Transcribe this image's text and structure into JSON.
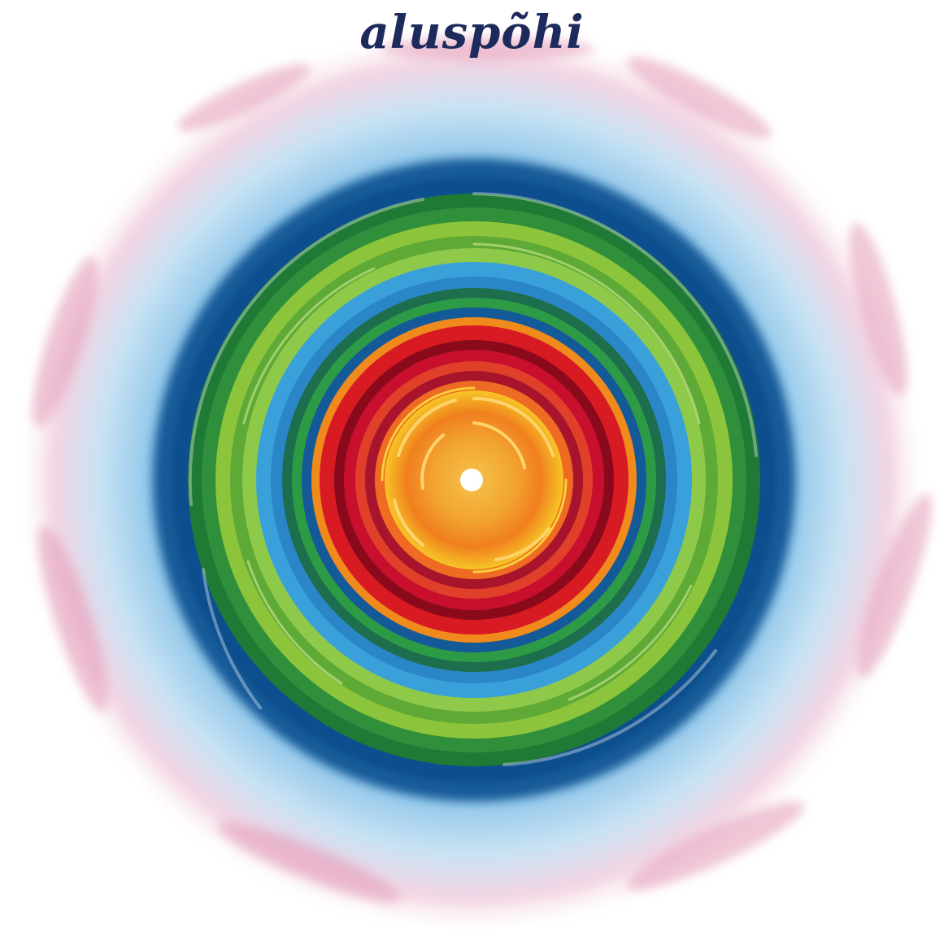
{
  "title": "aluspõhi",
  "colors": {
    "title_text": "#1f2a5c",
    "outer_pink": "#e7a9c3",
    "light_blue": "#8fc6ea",
    "deep_blue": "#0d4f8e",
    "dark_green": "#1d7a35",
    "light_green": "#9ccc3c",
    "mid_blue": "#3aa0da",
    "red": "#c8102e",
    "dark_red": "#8a0a1c",
    "orange": "#f08a1c",
    "yellow": "#f6c526",
    "center": "#ffffff"
  },
  "icons": {
    "artwork": "concentric-swirl-illustration"
  }
}
